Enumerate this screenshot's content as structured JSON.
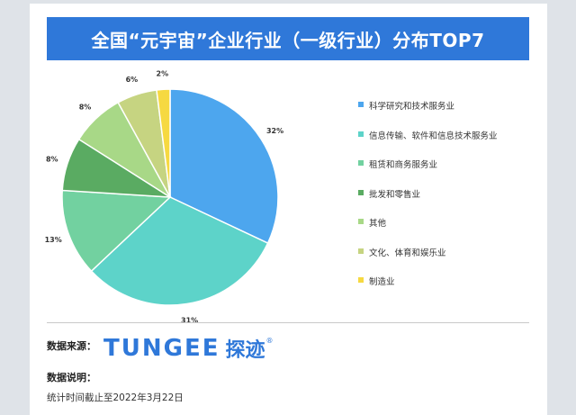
{
  "header": {
    "title": "全国“元宇宙”企业行业（一级行业）分布TOP7"
  },
  "chart_data": {
    "type": "pie",
    "categories": [
      "科学研究和技术服务业",
      "信息传输、软件和信息技术服务业",
      "租赁和商务服务业",
      "批发和零售业",
      "其他",
      "文化、体育和娱乐业",
      "制造业"
    ],
    "values": [
      32,
      31,
      13,
      8,
      8,
      6,
      2
    ],
    "value_labels": [
      "32%",
      "31%",
      "13%",
      "8%",
      "8%",
      "6%",
      "2%"
    ],
    "colors": [
      "#4da6ee",
      "#5dd3c9",
      "#72d1a0",
      "#5aab62",
      "#a8d887",
      "#c6d481",
      "#f6d941"
    ],
    "legend_position": "right"
  },
  "footer": {
    "source_label": "数据来源：",
    "logo_text": "TUNGEE",
    "logo_cn": "探迹",
    "logo_mark": "®",
    "note_label": "数据说明：",
    "note_text": "统计时间截止至2022年3月22日"
  }
}
